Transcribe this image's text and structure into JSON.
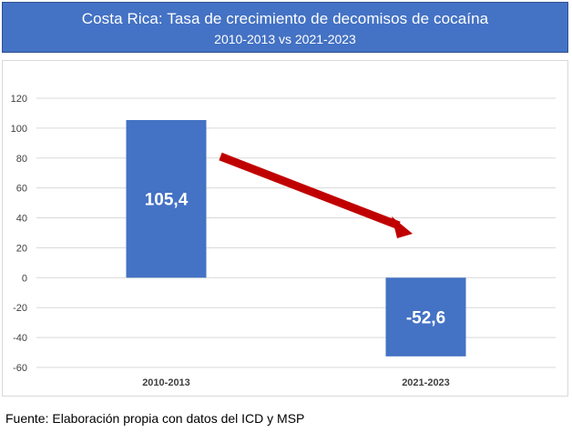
{
  "title": "Costa Rica: Tasa de crecimiento de decomisos de cocaína",
  "subtitle": "2010-2013 vs 2021-2023",
  "source_note": "Fuente: Elaboración propia con datos del ICD y MSP",
  "colors": {
    "header": "#4472c4",
    "bar": "#4472c4",
    "arrow": "#c00000",
    "grid": "#d9d9d9"
  },
  "chart_data": {
    "type": "bar",
    "categories": [
      "2010-2013",
      "2021-2023"
    ],
    "values": [
      105.4,
      -52.6
    ],
    "data_labels": [
      "105,4",
      "-52,6"
    ],
    "ylim": [
      -60,
      120
    ],
    "yticks": [
      120,
      100,
      80,
      60,
      40,
      20,
      0,
      -20,
      -40,
      -60
    ],
    "grid": true,
    "legend": "none",
    "annotation": "red arrow pointing downward from first bar toward second bar"
  }
}
